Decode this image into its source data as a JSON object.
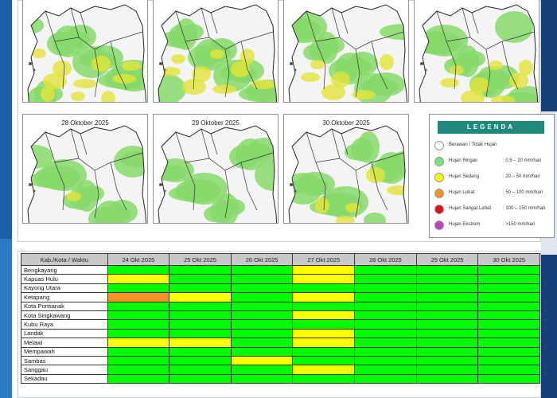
{
  "maps": {
    "titles": [
      "",
      "",
      "",
      "",
      "28 Oktober 2025",
      "29 Oktober 2025",
      "30 Oktober 2025"
    ]
  },
  "legend": {
    "title": "LEGENDA",
    "items": [
      {
        "label": "Berawan / Tidak Hujan",
        "range": "",
        "color": "#ffffff"
      },
      {
        "label": "Hujan Ringan",
        "range": ": 0.5 – 20 mm/hari",
        "color": "#7be37b"
      },
      {
        "label": "Hujan Sedang",
        "range": ": 20 – 50 mm/hari",
        "color": "#ffff00"
      },
      {
        "label": "Hujan Lebat",
        "range": ": 50 – 100 mm/hari",
        "color": "#f39422"
      },
      {
        "label": "Hujan Sangat Lebat",
        "range": ": 100 – 150 mm/hari",
        "color": "#e01010"
      },
      {
        "label": "Hujan Ekstrem",
        "range": ": >150 mm/hari",
        "color": "#c23fb5"
      }
    ]
  },
  "table": {
    "header": [
      "Kab./Kota / Waktu",
      "24 Okt 2025",
      "25 Okt 2025",
      "26 Okt 2025",
      "27 Okt 2025",
      "28 Okt 2025",
      "29 Okt 2025",
      "30 Okt 2025"
    ],
    "rows": [
      {
        "name": "Bengkayang",
        "cells": [
          "g",
          "g",
          "g",
          "y",
          "g",
          "g",
          "g"
        ]
      },
      {
        "name": "Kapuas Hulu",
        "cells": [
          "y",
          "g",
          "g",
          "y",
          "g",
          "g",
          "g"
        ]
      },
      {
        "name": "Kayong Utara",
        "cells": [
          "g",
          "g",
          "g",
          "g",
          "g",
          "g",
          "g"
        ]
      },
      {
        "name": "Ketapang",
        "cells": [
          "o",
          "y",
          "g",
          "y",
          "g",
          "g",
          "g"
        ]
      },
      {
        "name": "Kota Pontianak",
        "cells": [
          "g",
          "g",
          "g",
          "g",
          "g",
          "g",
          "g"
        ]
      },
      {
        "name": "Kota Singkawang",
        "cells": [
          "g",
          "g",
          "g",
          "y",
          "g",
          "g",
          "g"
        ]
      },
      {
        "name": "Kubu Raya",
        "cells": [
          "g",
          "g",
          "g",
          "g",
          "g",
          "g",
          "g"
        ]
      },
      {
        "name": "Landak",
        "cells": [
          "g",
          "g",
          "g",
          "y",
          "g",
          "g",
          "g"
        ]
      },
      {
        "name": "Melawi",
        "cells": [
          "y",
          "y",
          "g",
          "y",
          "g",
          "g",
          "g"
        ]
      },
      {
        "name": "Mempawah",
        "cells": [
          "g",
          "g",
          "g",
          "g",
          "g",
          "g",
          "g"
        ]
      },
      {
        "name": "Sambas",
        "cells": [
          "g",
          "g",
          "y",
          "g",
          "g",
          "g",
          "g"
        ]
      },
      {
        "name": "Sanggau",
        "cells": [
          "g",
          "g",
          "g",
          "y",
          "g",
          "g",
          "g"
        ]
      },
      {
        "name": "Sekadau",
        "cells": [
          "g",
          "g",
          "g",
          "g",
          "g",
          "g",
          "g"
        ]
      }
    ]
  }
}
